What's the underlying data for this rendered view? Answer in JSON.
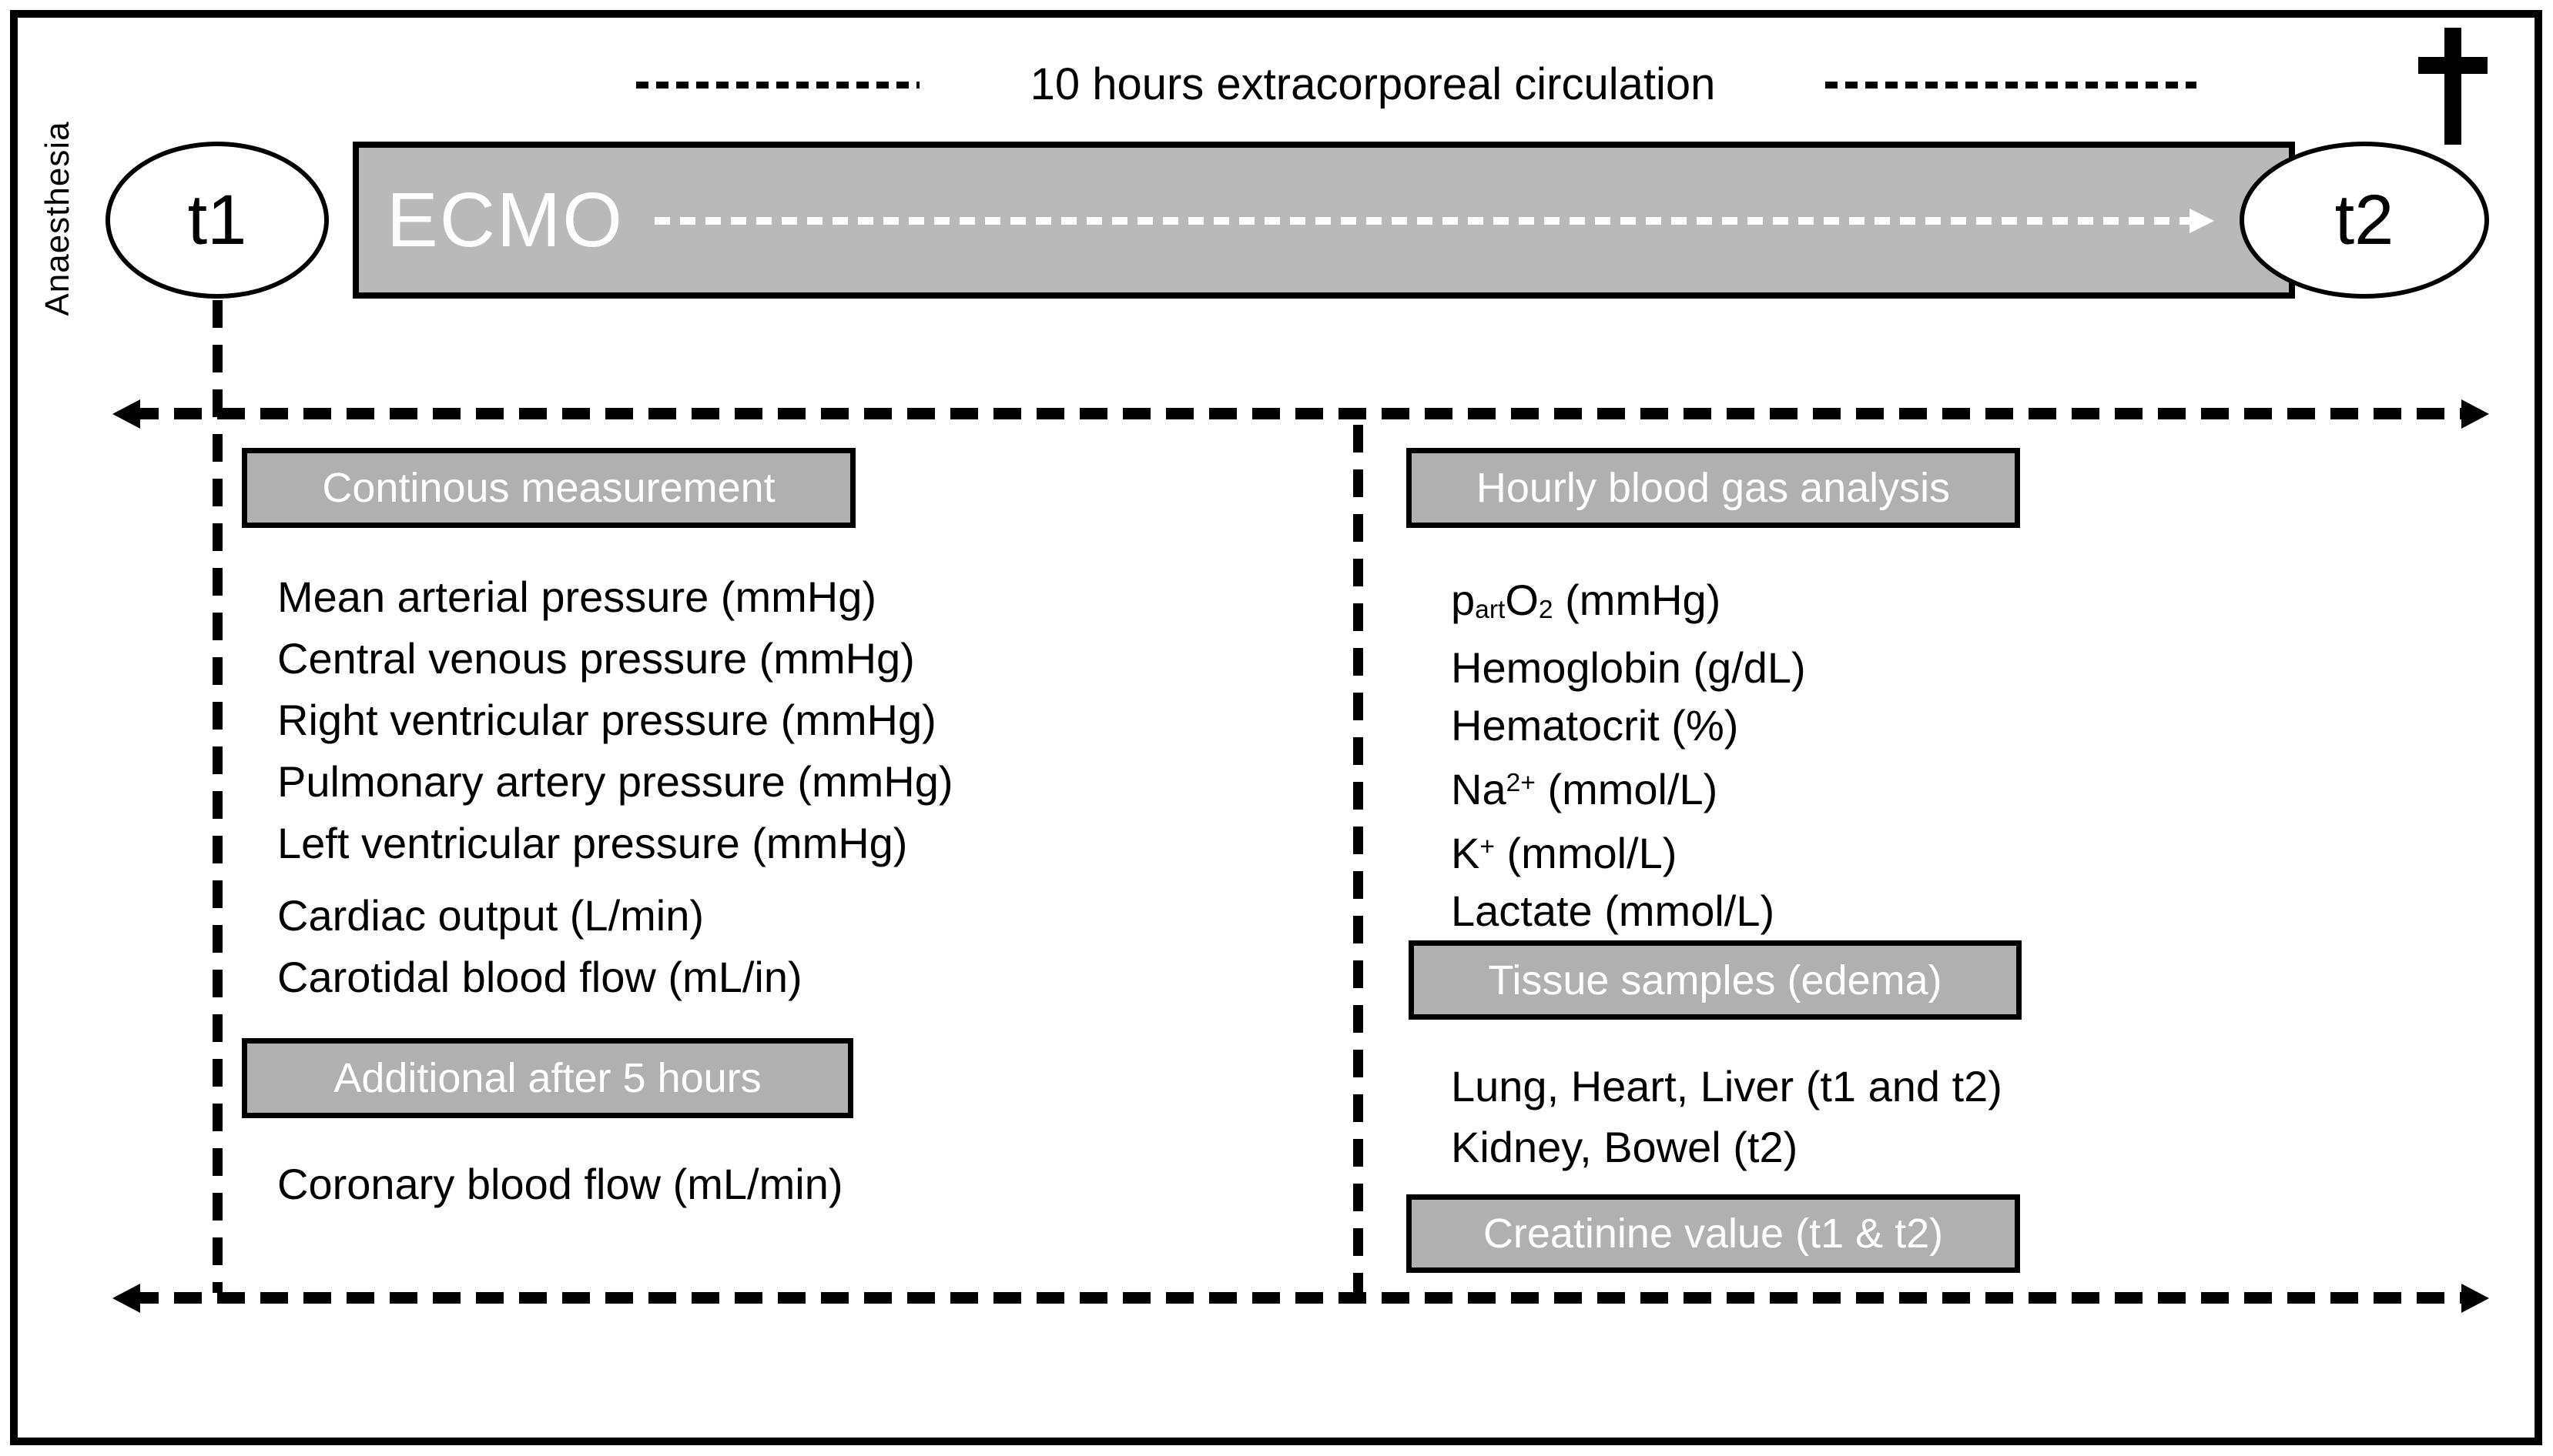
{
  "figure": {
    "side_label": "Anaesthesia",
    "header": {
      "duration_label": "10 hours extracorporeal circulation",
      "death_symbol": "dagger-cross-icon"
    },
    "timeline": {
      "ecmo_label": "ECMO",
      "start_label": "t1",
      "end_label": "t2"
    },
    "left_column": {
      "continuous_header": "Continous measurement",
      "pressure_items": [
        "Mean arterial pressure (mmHg)",
        "Central venous pressure (mmHg)",
        "Right ventricular pressure (mmHg)",
        "Pulmonary artery pressure (mmHg)",
        "Left ventricular pressure (mmHg)"
      ],
      "flow_items": [
        "Cardiac output (L/min)",
        "Carotidal blood flow (mL/in)"
      ],
      "additional_header": "Additional after 5 hours",
      "additional_item": "Coronary blood flow (mL/min)"
    },
    "right_column": {
      "blood_gas_header": "Hourly blood gas analysis",
      "blood_gas_items": [
        {
          "pre": "p",
          "sub1": "art",
          "mid": "O",
          "sub2": "2",
          "post": " (mmHg)"
        },
        {
          "label": "Hemoglobin (g/dL)"
        },
        {
          "label": "Hematocrit (%)"
        },
        {
          "base": "Na",
          "sup": "2+",
          "post": " (mmol/L)"
        },
        {
          "base": "K",
          "sup": "+",
          "post": " (mmol/L)"
        },
        {
          "label": "Lactate (mmol/L)"
        }
      ],
      "tissue_header": "Tissue samples (edema)",
      "tissue_items": [
        "Lung, Heart, Liver (t1 and t2)",
        "Kidney, Bowel (t2)"
      ],
      "creatinine_header": "Creatinine value (t1 & t2)"
    },
    "colors": {
      "ecmo_bar_fill": "#b9b9b9",
      "header_box_fill": "#b0b0b0",
      "line_color": "#000000",
      "text_on_gray": "#ffffff"
    }
  }
}
